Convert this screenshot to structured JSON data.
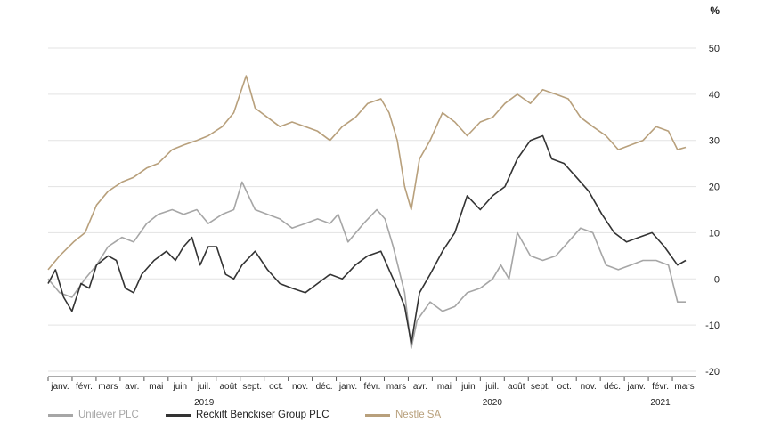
{
  "chart_data": {
    "type": "line",
    "unit": "%",
    "ylim": [
      -20,
      50
    ],
    "yticks": [
      -20,
      -10,
      0,
      10,
      20,
      30,
      40,
      50
    ],
    "grid": true,
    "legend_position": "bottom-left",
    "month_labels": [
      "janv.",
      "févr.",
      "mars",
      "avr.",
      "mai",
      "juin",
      "juil.",
      "août",
      "sept.",
      "oct.",
      "nov.",
      "déc.",
      "janv.",
      "févr.",
      "mars",
      "avr.",
      "mai",
      "juin",
      "juil.",
      "août",
      "sept.",
      "oct.",
      "nov.",
      "déc.",
      "janv.",
      "févr.",
      "mars"
    ],
    "year_labels": [
      {
        "label": "2019",
        "month_index": 6
      },
      {
        "label": "2020",
        "month_index": 18
      },
      {
        "label": "2021",
        "month_index": 25
      }
    ],
    "x_start": "2019-01-01",
    "x_end": "2021-02-28",
    "series": [
      {
        "name": "Unilever PLC",
        "color": "#a6a6a6",
        "points": [
          [
            "2019-01-01",
            0
          ],
          [
            "2019-01-15",
            -3
          ],
          [
            "2019-01-30",
            -4
          ],
          [
            "2019-02-15",
            0
          ],
          [
            "2019-03-01",
            3
          ],
          [
            "2019-03-15",
            7
          ],
          [
            "2019-04-01",
            9
          ],
          [
            "2019-04-15",
            8
          ],
          [
            "2019-05-01",
            12
          ],
          [
            "2019-05-15",
            14
          ],
          [
            "2019-06-01",
            15
          ],
          [
            "2019-06-15",
            14
          ],
          [
            "2019-07-01",
            15
          ],
          [
            "2019-07-15",
            12
          ],
          [
            "2019-08-01",
            14
          ],
          [
            "2019-08-15",
            15
          ],
          [
            "2019-08-25",
            21
          ],
          [
            "2019-09-10",
            15
          ],
          [
            "2019-09-25",
            14
          ],
          [
            "2019-10-10",
            13
          ],
          [
            "2019-10-25",
            11
          ],
          [
            "2019-11-10",
            12
          ],
          [
            "2019-11-25",
            13
          ],
          [
            "2019-12-10",
            12
          ],
          [
            "2019-12-20",
            14
          ],
          [
            "2020-01-01",
            8
          ],
          [
            "2020-01-20",
            12
          ],
          [
            "2020-02-05",
            15
          ],
          [
            "2020-02-15",
            13
          ],
          [
            "2020-02-25",
            7
          ],
          [
            "2020-03-10",
            -3
          ],
          [
            "2020-03-18",
            -15
          ],
          [
            "2020-03-25",
            -9
          ],
          [
            "2020-04-10",
            -5
          ],
          [
            "2020-04-25",
            -7
          ],
          [
            "2020-05-10",
            -6
          ],
          [
            "2020-05-25",
            -3
          ],
          [
            "2020-06-10",
            -2
          ],
          [
            "2020-06-25",
            0
          ],
          [
            "2020-07-05",
            3
          ],
          [
            "2020-07-15",
            0
          ],
          [
            "2020-07-25",
            10
          ],
          [
            "2020-08-10",
            5
          ],
          [
            "2020-08-25",
            4
          ],
          [
            "2020-09-10",
            5
          ],
          [
            "2020-09-25",
            8
          ],
          [
            "2020-10-10",
            11
          ],
          [
            "2020-10-25",
            10
          ],
          [
            "2020-11-10",
            3
          ],
          [
            "2020-11-25",
            2
          ],
          [
            "2020-12-10",
            3
          ],
          [
            "2020-12-25",
            4
          ],
          [
            "2021-01-10",
            4
          ],
          [
            "2021-01-25",
            3
          ],
          [
            "2021-02-05",
            -5
          ],
          [
            "2021-02-15",
            -5
          ]
        ]
      },
      {
        "name": "Reckitt Benckiser Group PLC",
        "color": "#333333",
        "points": [
          [
            "2019-01-01",
            -1
          ],
          [
            "2019-01-10",
            2
          ],
          [
            "2019-01-20",
            -4
          ],
          [
            "2019-01-30",
            -7
          ],
          [
            "2019-02-10",
            -1
          ],
          [
            "2019-02-20",
            -2
          ],
          [
            "2019-03-01",
            3
          ],
          [
            "2019-03-15",
            5
          ],
          [
            "2019-03-25",
            4
          ],
          [
            "2019-04-05",
            -2
          ],
          [
            "2019-04-15",
            -3
          ],
          [
            "2019-04-25",
            1
          ],
          [
            "2019-05-10",
            4
          ],
          [
            "2019-05-25",
            6
          ],
          [
            "2019-06-05",
            4
          ],
          [
            "2019-06-15",
            7
          ],
          [
            "2019-06-25",
            9
          ],
          [
            "2019-07-05",
            3
          ],
          [
            "2019-07-15",
            7
          ],
          [
            "2019-07-25",
            7
          ],
          [
            "2019-08-05",
            1
          ],
          [
            "2019-08-15",
            0
          ],
          [
            "2019-08-25",
            3
          ],
          [
            "2019-09-10",
            6
          ],
          [
            "2019-09-25",
            2
          ],
          [
            "2019-10-10",
            -1
          ],
          [
            "2019-10-25",
            -2
          ],
          [
            "2019-11-10",
            -3
          ],
          [
            "2019-11-25",
            -1
          ],
          [
            "2019-12-10",
            1
          ],
          [
            "2019-12-25",
            0
          ],
          [
            "2020-01-10",
            3
          ],
          [
            "2020-01-25",
            5
          ],
          [
            "2020-02-10",
            6
          ],
          [
            "2020-02-20",
            2
          ],
          [
            "2020-03-01",
            -2
          ],
          [
            "2020-03-10",
            -6
          ],
          [
            "2020-03-18",
            -14
          ],
          [
            "2020-03-28",
            -3
          ],
          [
            "2020-04-10",
            1
          ],
          [
            "2020-04-25",
            6
          ],
          [
            "2020-05-10",
            10
          ],
          [
            "2020-05-25",
            18
          ],
          [
            "2020-06-10",
            15
          ],
          [
            "2020-06-25",
            18
          ],
          [
            "2020-07-10",
            20
          ],
          [
            "2020-07-25",
            26
          ],
          [
            "2020-08-10",
            30
          ],
          [
            "2020-08-25",
            31
          ],
          [
            "2020-09-05",
            26
          ],
          [
            "2020-09-20",
            25
          ],
          [
            "2020-10-05",
            22
          ],
          [
            "2020-10-20",
            19
          ],
          [
            "2020-11-05",
            14
          ],
          [
            "2020-11-20",
            10
          ],
          [
            "2020-12-05",
            8
          ],
          [
            "2020-12-20",
            9
          ],
          [
            "2021-01-05",
            10
          ],
          [
            "2021-01-20",
            7
          ],
          [
            "2021-02-05",
            3
          ],
          [
            "2021-02-15",
            4
          ]
        ]
      },
      {
        "name": "Nestle SA",
        "color": "#b8a07c",
        "points": [
          [
            "2019-01-01",
            2
          ],
          [
            "2019-01-15",
            5
          ],
          [
            "2019-02-01",
            8
          ],
          [
            "2019-02-15",
            10
          ],
          [
            "2019-03-01",
            16
          ],
          [
            "2019-03-15",
            19
          ],
          [
            "2019-04-01",
            21
          ],
          [
            "2019-04-15",
            22
          ],
          [
            "2019-05-01",
            24
          ],
          [
            "2019-05-15",
            25
          ],
          [
            "2019-06-01",
            28
          ],
          [
            "2019-06-15",
            29
          ],
          [
            "2019-07-01",
            30
          ],
          [
            "2019-07-15",
            31
          ],
          [
            "2019-08-01",
            33
          ],
          [
            "2019-08-15",
            36
          ],
          [
            "2019-08-30",
            44
          ],
          [
            "2019-09-10",
            37
          ],
          [
            "2019-09-25",
            35
          ],
          [
            "2019-10-10",
            33
          ],
          [
            "2019-10-25",
            34
          ],
          [
            "2019-11-10",
            33
          ],
          [
            "2019-11-25",
            32
          ],
          [
            "2019-12-10",
            30
          ],
          [
            "2019-12-25",
            33
          ],
          [
            "2020-01-10",
            35
          ],
          [
            "2020-01-25",
            38
          ],
          [
            "2020-02-10",
            39
          ],
          [
            "2020-02-20",
            36
          ],
          [
            "2020-03-01",
            30
          ],
          [
            "2020-03-10",
            20
          ],
          [
            "2020-03-18",
            15
          ],
          [
            "2020-03-28",
            26
          ],
          [
            "2020-04-10",
            30
          ],
          [
            "2020-04-25",
            36
          ],
          [
            "2020-05-10",
            34
          ],
          [
            "2020-05-25",
            31
          ],
          [
            "2020-06-10",
            34
          ],
          [
            "2020-06-25",
            35
          ],
          [
            "2020-07-10",
            38
          ],
          [
            "2020-07-25",
            40
          ],
          [
            "2020-08-10",
            38
          ],
          [
            "2020-08-25",
            41
          ],
          [
            "2020-09-10",
            40
          ],
          [
            "2020-09-25",
            39
          ],
          [
            "2020-10-10",
            35
          ],
          [
            "2020-10-25",
            33
          ],
          [
            "2020-11-10",
            31
          ],
          [
            "2020-11-25",
            28
          ],
          [
            "2020-12-10",
            29
          ],
          [
            "2020-12-25",
            30
          ],
          [
            "2021-01-10",
            33
          ],
          [
            "2021-01-25",
            32
          ],
          [
            "2021-02-05",
            28
          ],
          [
            "2021-02-15",
            28.5
          ]
        ]
      }
    ]
  }
}
